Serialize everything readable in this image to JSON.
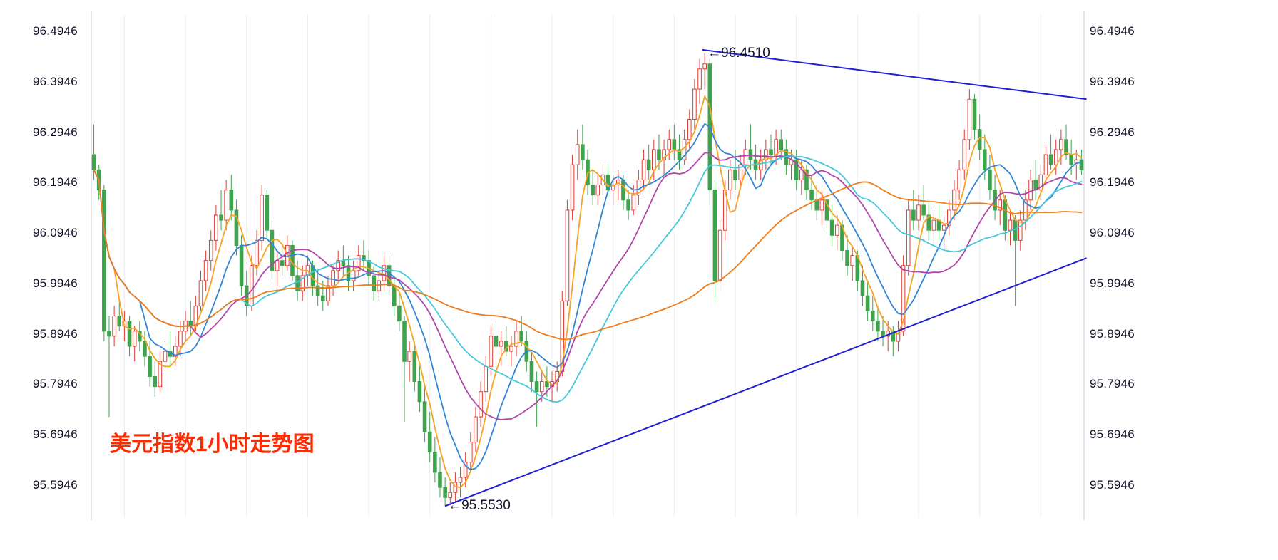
{
  "chart_data": {
    "type": "candlestick",
    "title": "美元指数1小时走势图",
    "title_color": "#ff2a00",
    "instrument": "美元指数",
    "timeframe": "1小时",
    "y_ticks": [
      "96.4946",
      "96.3946",
      "96.2946",
      "96.1946",
      "96.0946",
      "95.9946",
      "95.8946",
      "95.7946",
      "95.6946",
      "95.5946"
    ],
    "y_range": [
      95.545,
      96.52
    ],
    "grid": {
      "vertical_every": 12,
      "vertical_offset": 6,
      "color": "#ebebf2",
      "border_color": "#c8c8d2",
      "horizontal": false
    },
    "up_color": "#e03a30",
    "down_color": "#3fa34d",
    "candles": [
      [
        96.25,
        96.31,
        96.2,
        96.22
      ],
      [
        96.22,
        96.23,
        96.16,
        96.18
      ],
      [
        96.18,
        96.19,
        95.88,
        95.9
      ],
      [
        95.9,
        95.93,
        95.73,
        95.89
      ],
      [
        95.89,
        95.95,
        95.87,
        95.93
      ],
      [
        95.93,
        95.96,
        95.9,
        95.91
      ],
      [
        95.91,
        95.94,
        95.88,
        95.92
      ],
      [
        95.92,
        95.93,
        95.85,
        95.87
      ],
      [
        95.87,
        95.91,
        95.84,
        95.9
      ],
      [
        95.9,
        95.92,
        95.86,
        95.88
      ],
      [
        95.88,
        95.9,
        95.83,
        95.85
      ],
      [
        95.85,
        95.88,
        95.79,
        95.81
      ],
      [
        95.81,
        95.84,
        95.77,
        95.79
      ],
      [
        95.79,
        95.86,
        95.78,
        95.84
      ],
      [
        95.84,
        95.88,
        95.82,
        95.86
      ],
      [
        95.86,
        95.9,
        95.83,
        95.85
      ],
      [
        95.85,
        95.89,
        95.83,
        95.87
      ],
      [
        95.87,
        95.92,
        95.85,
        95.9
      ],
      [
        95.9,
        95.94,
        95.88,
        95.92
      ],
      [
        95.92,
        95.96,
        95.89,
        95.91
      ],
      [
        95.91,
        95.97,
        95.9,
        95.95
      ],
      [
        95.95,
        96.02,
        95.94,
        96.0
      ],
      [
        96.0,
        96.06,
        95.98,
        96.04
      ],
      [
        96.04,
        96.1,
        96.02,
        96.08
      ],
      [
        96.08,
        96.15,
        96.06,
        96.13
      ],
      [
        96.13,
        96.18,
        96.1,
        96.12
      ],
      [
        96.12,
        96.2,
        96.1,
        96.18
      ],
      [
        96.18,
        96.21,
        96.12,
        96.14
      ],
      [
        96.14,
        96.16,
        96.05,
        96.07
      ],
      [
        96.07,
        96.09,
        95.97,
        95.99
      ],
      [
        95.99,
        96.02,
        95.93,
        95.95
      ],
      [
        95.95,
        96.05,
        95.94,
        96.03
      ],
      [
        96.03,
        96.1,
        96.01,
        96.08
      ],
      [
        96.08,
        96.19,
        96.06,
        96.17
      ],
      [
        96.17,
        96.18,
        96.08,
        96.1
      ],
      [
        96.1,
        96.12,
        96.0,
        96.02
      ],
      [
        96.02,
        96.06,
        95.99,
        96.04
      ],
      [
        96.04,
        96.07,
        96.01,
        96.03
      ],
      [
        96.03,
        96.09,
        96.02,
        96.07
      ],
      [
        96.07,
        96.08,
        96.0,
        96.01
      ],
      [
        96.01,
        96.04,
        95.96,
        95.98
      ],
      [
        95.98,
        96.03,
        95.96,
        96.01
      ],
      [
        96.01,
        96.05,
        95.99,
        96.03
      ],
      [
        96.03,
        96.04,
        95.97,
        95.99
      ],
      [
        95.99,
        96.02,
        95.95,
        95.97
      ],
      [
        95.97,
        96.0,
        95.94,
        95.96
      ],
      [
        95.96,
        96.01,
        95.95,
        95.99
      ],
      [
        95.99,
        96.03,
        95.97,
        96.02
      ],
      [
        96.02,
        96.06,
        96.0,
        96.04
      ],
      [
        96.04,
        96.07,
        96.01,
        96.03
      ],
      [
        96.03,
        96.05,
        95.98,
        96.0
      ],
      [
        96.0,
        96.04,
        95.98,
        96.02
      ],
      [
        96.02,
        96.07,
        96.01,
        96.05
      ],
      [
        96.05,
        96.08,
        96.02,
        96.04
      ],
      [
        96.04,
        96.06,
        95.99,
        96.01
      ],
      [
        96.01,
        96.03,
        95.96,
        95.98
      ],
      [
        95.98,
        96.02,
        95.96,
        96.0
      ],
      [
        96.0,
        96.05,
        95.98,
        96.03
      ],
      [
        96.03,
        96.05,
        95.97,
        95.99
      ],
      [
        95.99,
        96.01,
        95.93,
        95.95
      ],
      [
        95.95,
        95.98,
        95.9,
        95.92
      ],
      [
        95.92,
        95.93,
        95.72,
        95.84
      ],
      [
        95.84,
        95.88,
        95.8,
        95.86
      ],
      [
        95.86,
        95.88,
        95.78,
        95.8
      ],
      [
        95.8,
        95.83,
        95.74,
        95.76
      ],
      [
        95.76,
        95.79,
        95.68,
        95.7
      ],
      [
        95.7,
        95.74,
        95.64,
        95.66
      ],
      [
        95.66,
        95.69,
        95.6,
        95.62
      ],
      [
        95.62,
        95.65,
        95.57,
        95.59
      ],
      [
        95.59,
        95.61,
        95.553,
        95.57
      ],
      [
        95.57,
        95.6,
        95.555,
        95.58
      ],
      [
        95.58,
        95.62,
        95.56,
        95.6
      ],
      [
        95.6,
        95.63,
        95.57,
        95.61
      ],
      [
        95.61,
        95.66,
        95.59,
        95.64
      ],
      [
        95.64,
        95.7,
        95.62,
        95.68
      ],
      [
        95.68,
        95.75,
        95.66,
        95.73
      ],
      [
        95.73,
        95.8,
        95.71,
        95.78
      ],
      [
        95.78,
        95.85,
        95.76,
        95.83
      ],
      [
        95.83,
        95.91,
        95.81,
        95.89
      ],
      [
        95.89,
        95.92,
        95.85,
        95.87
      ],
      [
        95.87,
        95.9,
        95.83,
        95.88
      ],
      [
        95.88,
        95.91,
        95.85,
        95.86
      ],
      [
        95.86,
        95.89,
        95.83,
        95.87
      ],
      [
        95.87,
        95.92,
        95.85,
        95.9
      ],
      [
        95.9,
        95.93,
        95.87,
        95.88
      ],
      [
        95.88,
        95.9,
        95.82,
        95.84
      ],
      [
        95.84,
        95.86,
        95.78,
        95.8
      ],
      [
        95.8,
        95.82,
        95.71,
        95.78
      ],
      [
        95.78,
        95.82,
        95.76,
        95.8
      ],
      [
        95.8,
        95.83,
        95.77,
        95.79
      ],
      [
        95.79,
        95.82,
        95.76,
        95.8
      ],
      [
        95.8,
        95.84,
        95.78,
        95.82
      ],
      [
        95.82,
        95.98,
        95.81,
        95.96
      ],
      [
        95.96,
        96.16,
        95.95,
        96.14
      ],
      [
        96.14,
        96.25,
        96.12,
        96.23
      ],
      [
        96.23,
        96.3,
        96.2,
        96.27
      ],
      [
        96.27,
        96.31,
        96.22,
        96.24
      ],
      [
        96.24,
        96.26,
        96.17,
        96.19
      ],
      [
        96.19,
        96.22,
        96.15,
        96.17
      ],
      [
        96.17,
        96.21,
        96.15,
        96.19
      ],
      [
        96.19,
        96.23,
        96.17,
        96.21
      ],
      [
        96.21,
        96.23,
        96.17,
        96.18
      ],
      [
        96.18,
        96.21,
        96.15,
        96.19
      ],
      [
        96.19,
        96.22,
        96.16,
        96.2
      ],
      [
        96.2,
        96.21,
        96.14,
        96.16
      ],
      [
        96.16,
        96.18,
        96.12,
        96.14
      ],
      [
        96.14,
        96.19,
        96.13,
        96.17
      ],
      [
        96.17,
        96.22,
        96.15,
        96.2
      ],
      [
        96.2,
        96.26,
        96.18,
        96.24
      ],
      [
        96.24,
        96.27,
        96.2,
        96.22
      ],
      [
        96.22,
        96.28,
        96.2,
        96.26
      ],
      [
        96.26,
        96.29,
        96.22,
        96.24
      ],
      [
        96.24,
        96.28,
        96.21,
        96.26
      ],
      [
        96.26,
        96.3,
        96.24,
        96.28
      ],
      [
        96.28,
        96.31,
        96.24,
        96.26
      ],
      [
        96.26,
        96.29,
        96.22,
        96.24
      ],
      [
        96.24,
        96.3,
        96.23,
        96.28
      ],
      [
        96.28,
        96.34,
        96.26,
        96.32
      ],
      [
        96.32,
        96.4,
        96.3,
        96.38
      ],
      [
        96.38,
        96.44,
        96.35,
        96.42
      ],
      [
        96.42,
        96.451,
        96.38,
        96.43
      ],
      [
        96.43,
        96.44,
        96.15,
        96.18
      ],
      [
        96.18,
        96.2,
        95.96,
        96.0
      ],
      [
        96.0,
        96.12,
        95.98,
        96.1
      ],
      [
        96.1,
        96.2,
        96.08,
        96.18
      ],
      [
        96.18,
        96.24,
        96.16,
        96.22
      ],
      [
        96.22,
        96.26,
        96.18,
        96.2
      ],
      [
        96.2,
        96.25,
        96.18,
        96.23
      ],
      [
        96.23,
        96.28,
        96.21,
        96.26
      ],
      [
        96.26,
        96.31,
        96.22,
        96.24
      ],
      [
        96.24,
        96.27,
        96.2,
        96.22
      ],
      [
        96.22,
        96.26,
        96.2,
        96.24
      ],
      [
        96.24,
        96.28,
        96.22,
        96.26
      ],
      [
        96.26,
        96.29,
        96.23,
        96.25
      ],
      [
        96.25,
        96.3,
        96.23,
        96.28
      ],
      [
        96.28,
        96.3,
        96.24,
        96.26
      ],
      [
        96.26,
        96.28,
        96.21,
        96.23
      ],
      [
        96.23,
        96.26,
        96.2,
        96.24
      ],
      [
        96.24,
        96.26,
        96.18,
        96.2
      ],
      [
        96.2,
        96.24,
        96.17,
        96.22
      ],
      [
        96.22,
        96.23,
        96.16,
        96.18
      ],
      [
        96.18,
        96.21,
        96.14,
        96.16
      ],
      [
        96.16,
        96.19,
        96.12,
        96.14
      ],
      [
        96.14,
        96.18,
        96.11,
        96.16
      ],
      [
        96.16,
        96.17,
        96.1,
        96.12
      ],
      [
        96.12,
        96.15,
        96.07,
        96.09
      ],
      [
        96.09,
        96.13,
        96.06,
        96.11
      ],
      [
        96.11,
        96.12,
        96.04,
        96.06
      ],
      [
        96.06,
        96.09,
        96.01,
        96.03
      ],
      [
        96.03,
        96.07,
        96.0,
        96.05
      ],
      [
        96.05,
        96.06,
        95.98,
        96.0
      ],
      [
        96.0,
        96.03,
        95.95,
        95.97
      ],
      [
        95.97,
        96.0,
        95.92,
        95.94
      ],
      [
        95.94,
        95.97,
        95.9,
        95.92
      ],
      [
        95.92,
        95.95,
        95.88,
        95.9
      ],
      [
        95.9,
        95.93,
        95.87,
        95.89
      ],
      [
        95.89,
        95.92,
        95.86,
        95.9
      ],
      [
        95.9,
        95.91,
        95.85,
        95.88
      ],
      [
        95.88,
        95.92,
        95.86,
        95.9
      ],
      [
        95.9,
        96.05,
        95.89,
        96.03
      ],
      [
        96.03,
        96.16,
        96.01,
        96.14
      ],
      [
        96.14,
        96.18,
        96.1,
        96.12
      ],
      [
        96.12,
        96.17,
        96.1,
        96.15
      ],
      [
        96.15,
        96.19,
        96.12,
        96.13
      ],
      [
        96.13,
        96.16,
        96.08,
        96.1
      ],
      [
        96.1,
        96.14,
        96.07,
        96.12
      ],
      [
        96.12,
        96.15,
        96.08,
        96.1
      ],
      [
        96.1,
        96.13,
        96.06,
        96.11
      ],
      [
        96.11,
        96.16,
        96.09,
        96.14
      ],
      [
        96.14,
        96.2,
        96.12,
        96.18
      ],
      [
        96.18,
        96.24,
        96.16,
        96.22
      ],
      [
        96.22,
        96.3,
        96.2,
        96.28
      ],
      [
        96.28,
        96.38,
        96.26,
        96.36
      ],
      [
        96.36,
        96.37,
        96.28,
        96.3
      ],
      [
        96.3,
        96.33,
        96.24,
        96.26
      ],
      [
        96.26,
        96.29,
        96.2,
        96.22
      ],
      [
        96.22,
        96.25,
        96.16,
        96.18
      ],
      [
        96.18,
        96.21,
        96.12,
        96.14
      ],
      [
        96.14,
        96.18,
        96.11,
        96.16
      ],
      [
        96.16,
        96.17,
        96.08,
        96.1
      ],
      [
        96.1,
        96.14,
        96.07,
        96.12
      ],
      [
        96.12,
        96.13,
        95.95,
        96.08
      ],
      [
        96.08,
        96.14,
        96.06,
        96.12
      ],
      [
        96.12,
        96.18,
        96.1,
        96.16
      ],
      [
        96.16,
        96.22,
        96.14,
        96.2
      ],
      [
        96.2,
        96.24,
        96.16,
        96.18
      ],
      [
        96.18,
        96.23,
        96.16,
        96.21
      ],
      [
        96.21,
        96.27,
        96.19,
        96.25
      ],
      [
        96.25,
        96.29,
        96.22,
        96.23
      ],
      [
        96.23,
        96.28,
        96.21,
        96.26
      ],
      [
        96.26,
        96.3,
        96.23,
        96.28
      ],
      [
        96.28,
        96.31,
        96.24,
        96.25
      ],
      [
        96.25,
        96.28,
        96.21,
        96.23
      ],
      [
        96.23,
        96.26,
        96.2,
        96.24
      ],
      [
        96.24,
        96.26,
        96.21,
        96.22
      ]
    ],
    "moving_averages": [
      {
        "name": "MA5",
        "period": 5,
        "color": "#f7a224"
      },
      {
        "name": "MA10",
        "period": 10,
        "color": "#2f86d6"
      },
      {
        "name": "MA20",
        "period": 20,
        "color": "#b344ad"
      },
      {
        "name": "MA30",
        "period": 30,
        "color": "#45c8dc"
      },
      {
        "name": "MA60",
        "period": 60,
        "color": "#ef7b1a"
      }
    ],
    "trendlines": [
      {
        "name": "upper-descending",
        "color": "#1f1fd4",
        "width": 2,
        "from": {
          "index": 119.5,
          "price": 96.458
        },
        "to": {
          "index": 195,
          "price": 96.36
        }
      },
      {
        "name": "lower-ascending",
        "color": "#1f1fd4",
        "width": 2,
        "from": {
          "index": 69,
          "price": 95.553
        },
        "to": {
          "index": 195,
          "price": 96.045
        }
      }
    ],
    "annotations": [
      {
        "text": "←96.4510",
        "index": 120,
        "price": 96.451,
        "placement": "right-of-high"
      },
      {
        "text": "←95.5530",
        "index": 69,
        "price": 95.553,
        "placement": "right-of-low"
      }
    ]
  }
}
